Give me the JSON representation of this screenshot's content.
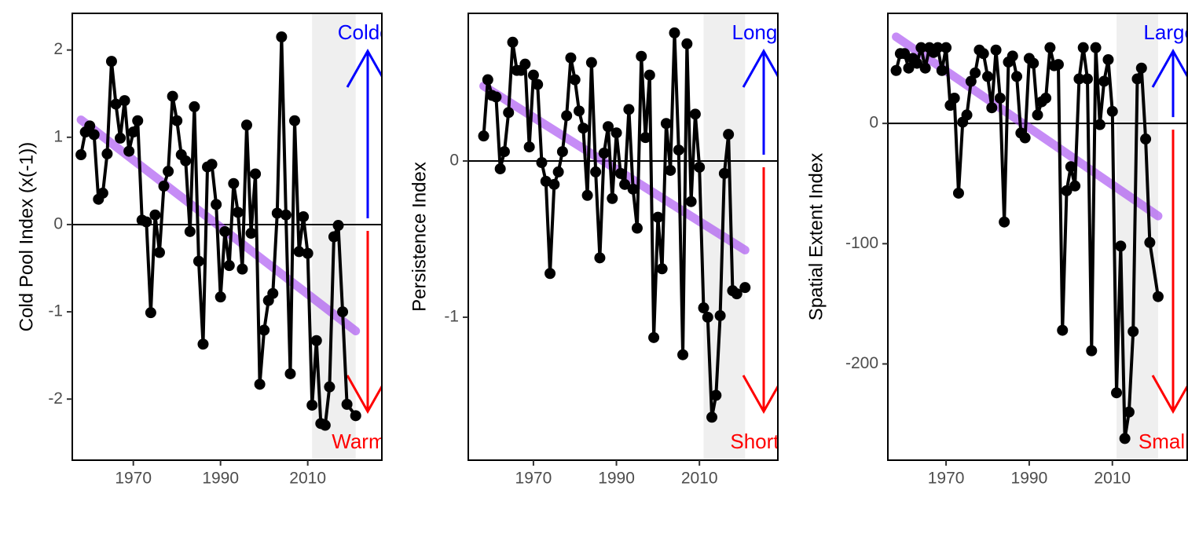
{
  "chart_data": [
    {
      "type": "line",
      "y_label": "Cold Pool Index (x(-1))",
      "x": [
        1958,
        1959,
        1960,
        1961,
        1962,
        1963,
        1964,
        1965,
        1966,
        1967,
        1968,
        1969,
        1970,
        1971,
        1972,
        1973,
        1974,
        1975,
        1976,
        1977,
        1978,
        1979,
        1980,
        1981,
        1982,
        1983,
        1984,
        1985,
        1986,
        1987,
        1988,
        1989,
        1990,
        1991,
        1992,
        1993,
        1994,
        1995,
        1996,
        1997,
        1998,
        1999,
        2000,
        2001,
        2002,
        2003,
        2004,
        2005,
        2006,
        2007,
        2008,
        2009,
        2010,
        2011,
        2012,
        2013,
        2014,
        2015,
        2016,
        2017,
        2018,
        2019,
        2021
      ],
      "values": [
        0.8,
        1.06,
        1.13,
        1.03,
        0.29,
        0.36,
        0.81,
        1.87,
        1.38,
        0.99,
        1.42,
        0.84,
        1.06,
        1.19,
        0.05,
        0.03,
        -1.01,
        0.11,
        -0.32,
        0.44,
        0.61,
        1.47,
        1.19,
        0.8,
        0.73,
        -0.08,
        1.35,
        -0.42,
        -1.37,
        0.66,
        0.69,
        0.23,
        -0.83,
        -0.08,
        -0.47,
        0.47,
        0.14,
        -0.51,
        1.14,
        -0.1,
        0.58,
        -1.83,
        -1.21,
        -0.87,
        -0.79,
        0.13,
        2.15,
        0.11,
        -1.71,
        1.19,
        -0.31,
        0.09,
        -0.33,
        -2.07,
        -1.33,
        -2.28,
        -2.3,
        -1.86,
        -0.14,
        -0.01,
        -1.0,
        -2.06,
        -2.19
      ],
      "color": "#000000",
      "trend": {
        "x": [
          1958,
          2021
        ],
        "y": [
          1.2,
          -1.22
        ],
        "color": "#a040f0"
      },
      "shade": [
        2011,
        2021
      ],
      "hline": 0,
      "annotations": {
        "top": {
          "text": "Colder",
          "color": "#0000ff"
        },
        "bottom": {
          "text": "Warmer",
          "color": "#ff0000"
        }
      },
      "xlim": [
        1956,
        2027
      ],
      "ylim": [
        -2.7,
        2.42
      ],
      "xticks": [
        1970,
        1990,
        2010
      ],
      "yticks": [
        -2,
        -1,
        0,
        1,
        2
      ]
    },
    {
      "type": "line",
      "y_label": "Persistence Index",
      "x": [
        1958,
        1959,
        1960,
        1961,
        1962,
        1963,
        1964,
        1965,
        1966,
        1967,
        1968,
        1969,
        1970,
        1971,
        1972,
        1973,
        1974,
        1975,
        1976,
        1977,
        1978,
        1979,
        1980,
        1981,
        1982,
        1983,
        1984,
        1985,
        1986,
        1987,
        1988,
        1989,
        1990,
        1991,
        1992,
        1993,
        1994,
        1995,
        1996,
        1997,
        1998,
        1999,
        2000,
        2001,
        2002,
        2003,
        2004,
        2005,
        2006,
        2007,
        2008,
        2009,
        2010,
        2011,
        2012,
        2013,
        2014,
        2015,
        2016,
        2017,
        2018,
        2019,
        2021
      ],
      "values": [
        0.16,
        0.52,
        0.42,
        0.41,
        -0.05,
        0.06,
        0.31,
        0.76,
        0.58,
        0.58,
        0.62,
        0.09,
        0.55,
        0.49,
        -0.01,
        -0.13,
        -0.72,
        -0.15,
        -0.07,
        0.06,
        0.29,
        0.66,
        0.52,
        0.32,
        0.21,
        -0.22,
        0.63,
        -0.07,
        -0.62,
        0.05,
        0.22,
        -0.24,
        0.18,
        -0.08,
        -0.15,
        0.33,
        -0.18,
        -0.43,
        0.67,
        0.15,
        0.55,
        -1.13,
        -0.36,
        -0.69,
        0.24,
        -0.06,
        0.82,
        0.07,
        -1.24,
        0.75,
        -0.26,
        0.3,
        -0.04,
        -0.94,
        -1.0,
        -1.64,
        -1.5,
        -0.99,
        -0.08,
        0.17,
        -0.83,
        -0.85,
        -0.81
      ],
      "color": "#000000",
      "trend": {
        "x": [
          1958,
          2021
        ],
        "y": [
          0.48,
          -0.57
        ],
        "color": "#a040f0"
      },
      "shade": [
        2011,
        2021
      ],
      "hline": 0,
      "annotations": {
        "top": {
          "text": "Longer",
          "color": "#0000ff"
        },
        "bottom": {
          "text": "Shorter",
          "color": "#ff0000"
        }
      },
      "xlim": [
        1954.3,
        2028.9
      ],
      "ylim": [
        -1.915,
        0.945
      ],
      "xticks": [
        1970,
        1990,
        2010
      ],
      "yticks": [
        -1,
        0
      ]
    },
    {
      "type": "line",
      "y_label": "Spatial Extent Index",
      "x": [
        1958,
        1959,
        1960,
        1961,
        1962,
        1963,
        1964,
        1965,
        1966,
        1967,
        1968,
        1969,
        1970,
        1971,
        1972,
        1973,
        1974,
        1975,
        1976,
        1977,
        1978,
        1979,
        1980,
        1981,
        1982,
        1983,
        1984,
        1985,
        1986,
        1987,
        1988,
        1989,
        1990,
        1991,
        1992,
        1993,
        1994,
        1995,
        1996,
        1997,
        1998,
        1999,
        2000,
        2001,
        2002,
        2003,
        2004,
        2005,
        2006,
        2007,
        2008,
        2009,
        2010,
        2011,
        2012,
        2013,
        2014,
        2015,
        2016,
        2017,
        2018,
        2019,
        2021
      ],
      "values": [
        44,
        58,
        58,
        46,
        54,
        50,
        63,
        46,
        63,
        59,
        63,
        44,
        63,
        15,
        21,
        -58,
        1,
        7,
        35,
        42,
        61,
        58,
        39,
        13,
        61,
        21,
        -82,
        51,
        56,
        39,
        -8,
        -12,
        54,
        50,
        7,
        18,
        21,
        63,
        48,
        49,
        -172,
        -56,
        -36,
        -52,
        37,
        63,
        37,
        -189,
        63,
        -1,
        35,
        53,
        10,
        -224,
        -102,
        -262,
        -240,
        -173,
        37,
        46,
        -13,
        -99,
        -144
      ],
      "color": "#000000",
      "trend": {
        "x": [
          1958,
          2021
        ],
        "y": [
          72,
          -77
        ],
        "color": "#a040f0"
      },
      "shade": [
        2011,
        2021
      ],
      "hline": 0,
      "annotations": {
        "top": {
          "text": "Larger",
          "color": "#0000ff"
        },
        "bottom": {
          "text": "Smaller",
          "color": "#ff0000"
        }
      },
      "xlim": [
        1956,
        2028
      ],
      "ylim": [
        -280,
        91.5
      ],
      "xticks": [
        1970,
        1990,
        2010
      ],
      "yticks": [
        -200,
        -100,
        0
      ]
    }
  ]
}
